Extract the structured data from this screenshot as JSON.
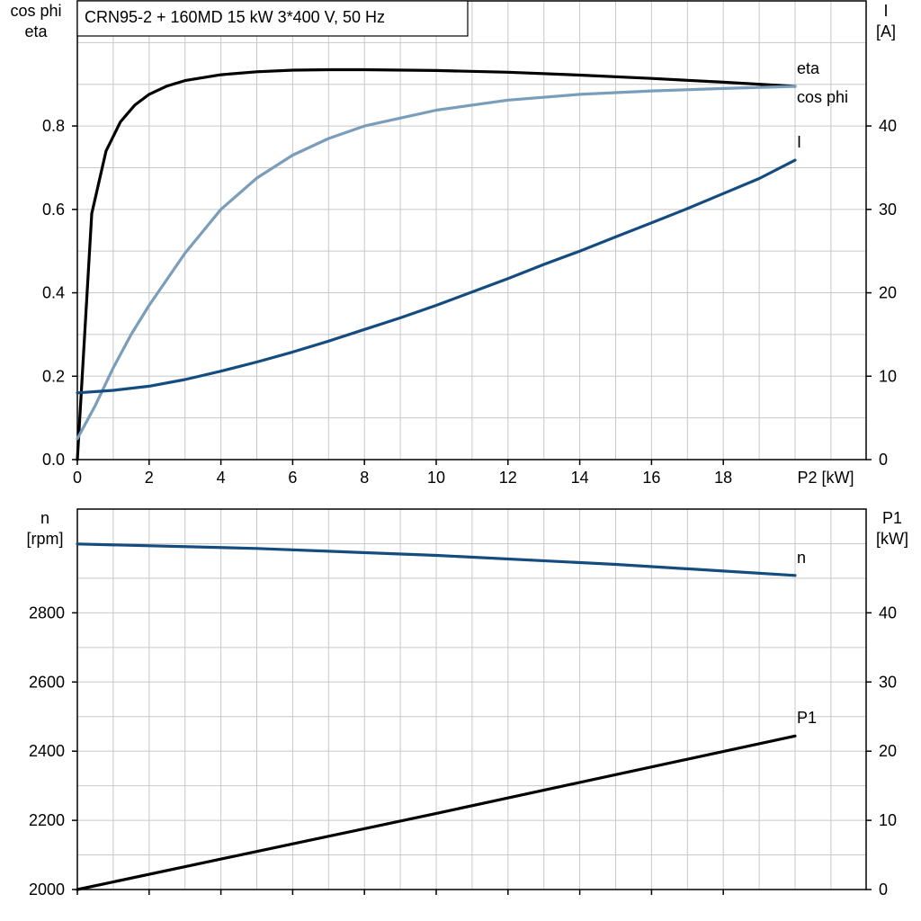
{
  "title": "CRN95-2 + 160MD   15 kW   3*400 V, 50 Hz",
  "colors": {
    "eta": "#000000",
    "cos_phi": "#7a9dbb",
    "current": "#154c80",
    "speed": "#154c80",
    "p1": "#000000"
  },
  "chart_data": [
    {
      "type": "line",
      "xlabel": "P2 [kW]",
      "xlim": [
        0,
        20
      ],
      "x_ticks": [
        "0",
        "2",
        "4",
        "6",
        "8",
        "10",
        "12",
        "14",
        "16",
        "18"
      ],
      "left_axis": {
        "label_line1": "cos phi",
        "label_line2": "eta",
        "ylim": [
          0,
          1.1
        ],
        "ticks": [
          "0.0",
          "0.2",
          "0.4",
          "0.6",
          "0.8"
        ]
      },
      "right_axis": {
        "label_line1": "I",
        "label_line2": "[A]",
        "ylim": [
          0,
          55
        ],
        "ticks": [
          "0",
          "10",
          "20",
          "30",
          "40"
        ]
      },
      "grid": true,
      "series": [
        {
          "name": "eta",
          "axis": "left",
          "x": [
            0,
            0.4,
            0.8,
            1.2,
            1.6,
            2,
            2.5,
            3,
            4,
            5,
            6,
            7,
            8,
            10,
            12,
            14,
            16,
            18,
            20
          ],
          "y": [
            0.0,
            0.59,
            0.74,
            0.81,
            0.85,
            0.876,
            0.896,
            0.909,
            0.923,
            0.93,
            0.934,
            0.935,
            0.935,
            0.933,
            0.929,
            0.922,
            0.914,
            0.905,
            0.895
          ]
        },
        {
          "name": "cos phi",
          "axis": "left",
          "x": [
            0,
            0.5,
            1,
            1.5,
            2,
            3,
            4,
            5,
            6,
            7,
            8,
            10,
            12,
            14,
            16,
            18,
            20
          ],
          "y": [
            0.05,
            0.13,
            0.22,
            0.3,
            0.37,
            0.495,
            0.6,
            0.675,
            0.73,
            0.77,
            0.8,
            0.838,
            0.862,
            0.876,
            0.884,
            0.89,
            0.895
          ]
        },
        {
          "name": "I",
          "axis": "right",
          "x": [
            0,
            1,
            2,
            3,
            4,
            5,
            6,
            7,
            8,
            9,
            10,
            11,
            12,
            13,
            14,
            15,
            16,
            17,
            18,
            19,
            20
          ],
          "y": [
            8.0,
            8.3,
            8.8,
            9.6,
            10.6,
            11.7,
            12.9,
            14.2,
            15.6,
            17.0,
            18.5,
            20.1,
            21.7,
            23.4,
            25.0,
            26.7,
            28.4,
            30.1,
            31.9,
            33.7,
            35.9
          ]
        }
      ]
    },
    {
      "type": "line",
      "xlim": [
        0,
        20
      ],
      "left_axis": {
        "label_line1": "n",
        "label_line2": "[rpm]",
        "ylim": [
          2000,
          3100
        ],
        "ticks": [
          "2000",
          "2200",
          "2400",
          "2600",
          "2800"
        ]
      },
      "right_axis": {
        "label_line1": "P1",
        "label_line2": "[kW]",
        "ylim": [
          0,
          55
        ],
        "ticks": [
          "0",
          "10",
          "20",
          "30",
          "40"
        ]
      },
      "grid": true,
      "series": [
        {
          "name": "n",
          "axis": "left",
          "x": [
            0,
            5,
            10,
            15,
            20
          ],
          "y": [
            2999,
            2986,
            2966,
            2940,
            2908
          ]
        },
        {
          "name": "P1",
          "axis": "right",
          "x": [
            0,
            5,
            10,
            15,
            20
          ],
          "y": [
            0.0,
            5.5,
            11.0,
            16.6,
            22.2
          ]
        }
      ]
    }
  ]
}
